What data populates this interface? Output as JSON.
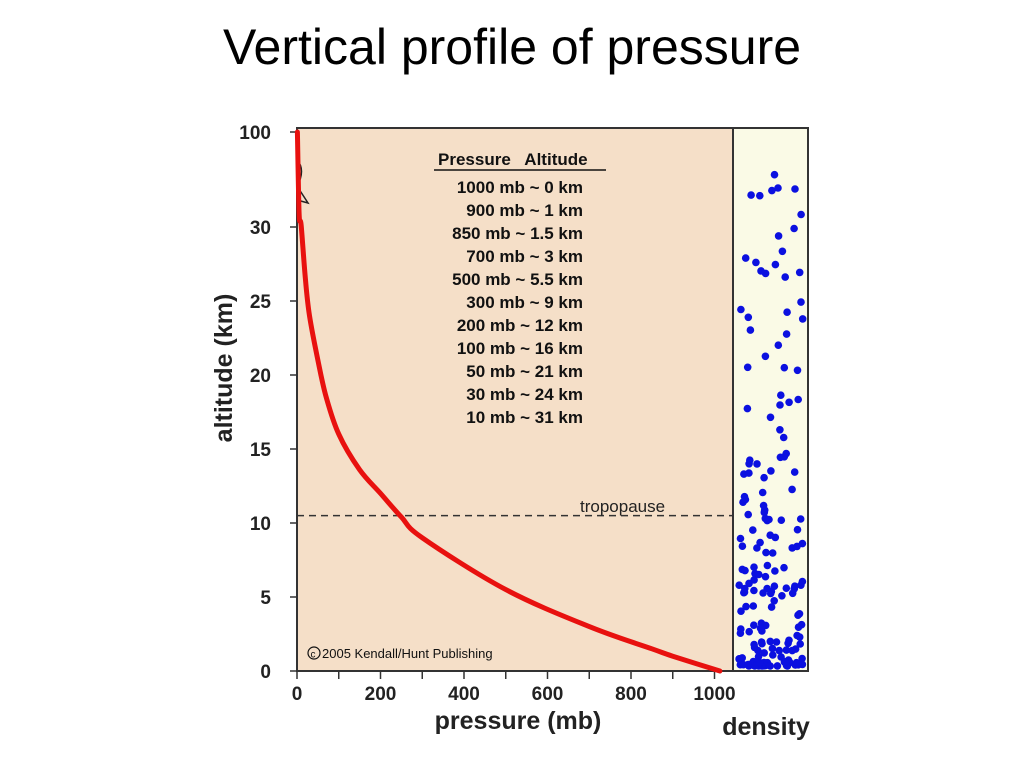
{
  "slide": {
    "title": "Vertical profile of pressure"
  },
  "chart_data": {
    "type": "line",
    "xlabel": "pressure (mb)",
    "ylabel": "altitude (km)",
    "xlim": [
      0,
      1050
    ],
    "x_ticks": [
      "0",
      "200",
      "400",
      "600",
      "800",
      "1000"
    ],
    "y_ticks": [
      "0",
      "5",
      "10",
      "15",
      "20",
      "25",
      "30",
      "100"
    ],
    "y_axis_break": "between 30 and 100",
    "grid": false,
    "background_color": "#f5dfc8",
    "line_color": "#e8110f",
    "series": [
      {
        "x": [
          1013,
          900,
          850,
          700,
          500,
          300,
          250,
          200,
          150,
          100,
          70,
          50,
          30,
          20,
          10,
          5,
          1
        ],
        "y": [
          0,
          1,
          1.5,
          3,
          5.5,
          9,
          10.4,
          12,
          13.6,
          16,
          18.5,
          21,
          24,
          26.5,
          31,
          40,
          100
        ]
      }
    ],
    "table": {
      "header": "Pressure   Altitude",
      "rows": [
        "1000 mb ~ 0 km",
        "900 mb ~ 1 km",
        "850 mb ~ 1.5 km",
        "700 mb ~ 3 km",
        "500 mb ~ 5.5 km",
        "300 mb ~ 9 km",
        "200 mb ~ 12 km",
        "100 mb ~ 16 km",
        "50 mb ~ 21 km",
        "30 mb ~ 24 km",
        "10 mb ~ 31 km"
      ]
    },
    "tropopause": {
      "label": "tropopause",
      "altitude": 10.5
    },
    "copyright": "2005 Kendall/Hunt Publishing",
    "density_panel": {
      "label": "density",
      "background": "#fafae6",
      "dot_color": "#0b10e0"
    }
  }
}
